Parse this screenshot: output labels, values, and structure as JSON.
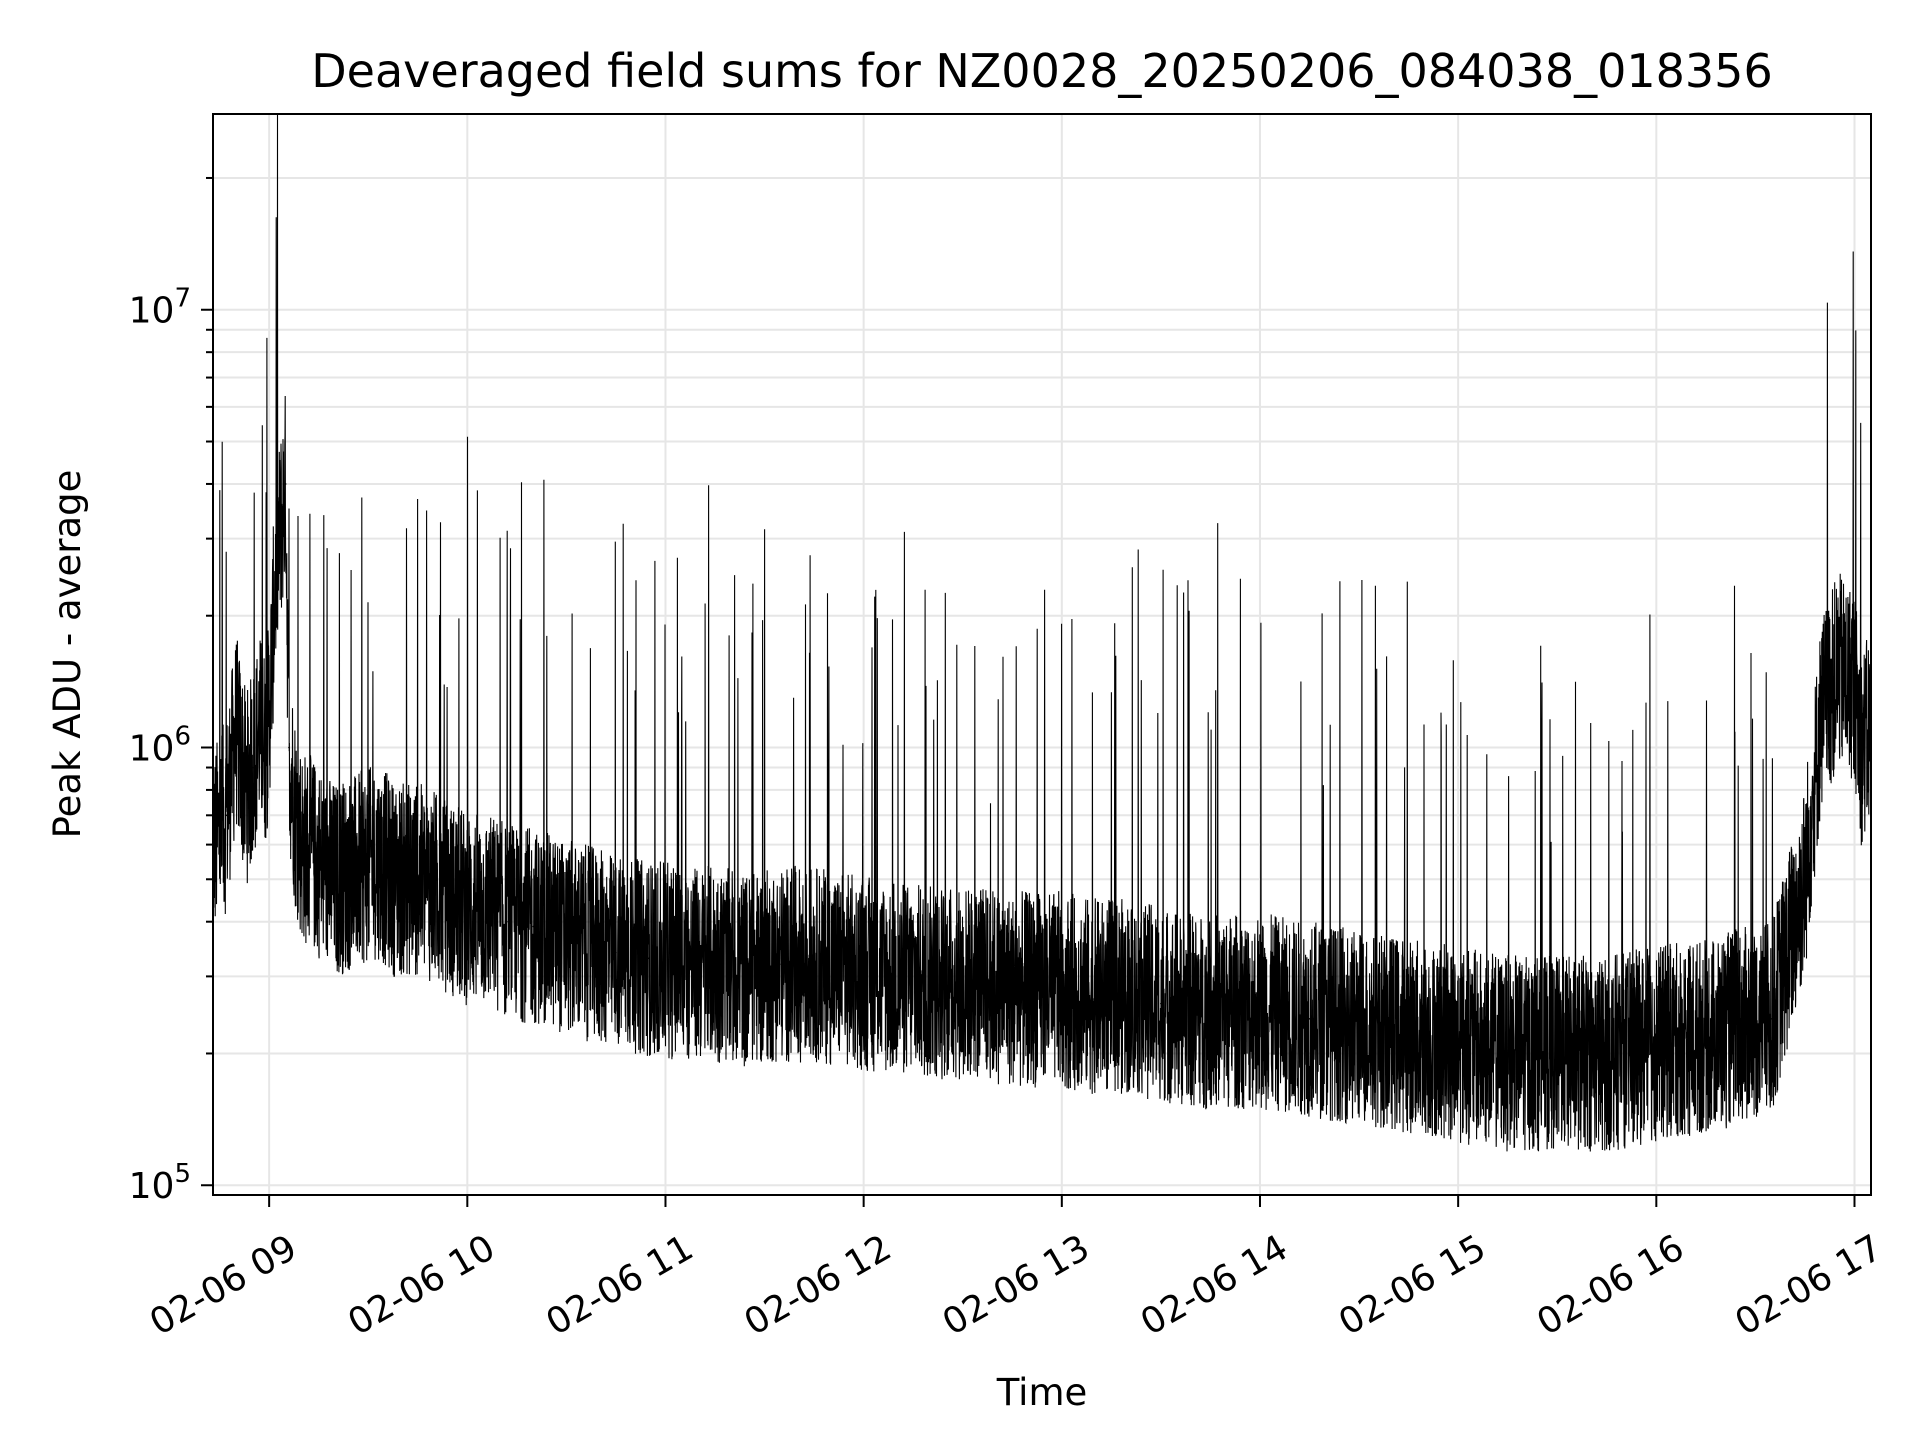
{
  "chart_data": {
    "type": "line",
    "title": "Deaveraged field sums for NZ0028_20250206_084038_018356",
    "xlabel": "Time",
    "ylabel": "Peak ADU - average",
    "yscale": "log",
    "ylim": [
      95000,
      28000000
    ],
    "xlim": [
      "2025-02-06 08:43",
      "2025-02-06 17:05"
    ],
    "grid": true,
    "line_color": "#000000",
    "x_ticks": [
      {
        "t": "2025-02-06 09:00",
        "label": "02-06 09"
      },
      {
        "t": "2025-02-06 10:00",
        "label": "02-06 10"
      },
      {
        "t": "2025-02-06 11:00",
        "label": "02-06 11"
      },
      {
        "t": "2025-02-06 12:00",
        "label": "02-06 12"
      },
      {
        "t": "2025-02-06 13:00",
        "label": "02-06 13"
      },
      {
        "t": "2025-02-06 14:00",
        "label": "02-06 14"
      },
      {
        "t": "2025-02-06 15:00",
        "label": "02-06 15"
      },
      {
        "t": "2025-02-06 16:00",
        "label": "02-06 16"
      },
      {
        "t": "2025-02-06 17:00",
        "label": "02-06 17"
      }
    ],
    "y_ticks": [
      {
        "value": 100000,
        "base": "10",
        "exp": "5"
      },
      {
        "value": 1000000,
        "base": "10",
        "exp": "6"
      },
      {
        "value": 10000000,
        "base": "10",
        "exp": "7"
      }
    ],
    "series": [
      {
        "x": [
          "2025-02-06 08:43",
          "2025-02-06 08:47",
          "2025-02-06 08:50",
          "2025-02-06 08:53",
          "2025-02-06 08:55",
          "2025-02-06 08:57",
          "2025-02-06 08:59",
          "2025-02-06 09:00",
          "2025-02-06 09:02",
          "2025-02-06 09:05",
          "2025-02-06 09:06",
          "2025-02-06 09:08",
          "2025-02-06 09:10",
          "2025-02-06 09:15",
          "2025-02-06 09:20",
          "2025-02-06 09:26",
          "2025-02-06 09:33",
          "2025-02-06 09:38",
          "2025-02-06 09:44",
          "2025-02-06 09:50",
          "2025-02-06 09:55",
          "2025-02-06 10:00",
          "2025-02-06 10:08",
          "2025-02-06 10:12",
          "2025-02-06 10:20",
          "2025-02-06 10:30",
          "2025-02-06 10:40",
          "2025-02-06 10:45",
          "2025-02-06 10:55",
          "2025-02-06 11:07",
          "2025-02-06 11:15",
          "2025-02-06 11:25",
          "2025-02-06 11:35",
          "2025-02-06 11:45",
          "2025-02-06 11:55",
          "2025-02-06 12:05",
          "2025-02-06 12:20",
          "2025-02-06 12:35",
          "2025-02-06 12:45",
          "2025-02-06 13:00",
          "2025-02-06 13:10",
          "2025-02-06 13:20",
          "2025-02-06 13:30",
          "2025-02-06 13:40",
          "2025-02-06 13:50",
          "2025-02-06 14:00",
          "2025-02-06 14:15",
          "2025-02-06 14:30",
          "2025-02-06 14:45",
          "2025-02-06 15:00",
          "2025-02-06 15:15",
          "2025-02-06 15:30",
          "2025-02-06 15:45",
          "2025-02-06 16:00",
          "2025-02-06 16:15",
          "2025-02-06 16:25",
          "2025-02-06 16:35",
          "2025-02-06 16:45",
          "2025-02-06 16:50",
          "2025-02-06 16:55",
          "2025-02-06 17:00",
          "2025-02-06 17:02",
          "2025-02-06 17:05"
        ],
        "values": [
          600000,
          700000,
          1100000,
          800000,
          900000,
          1100000,
          1000000,
          1200000,
          2500000,
          4000000,
          1000000,
          700000,
          600000,
          550000,
          500000,
          520000,
          550000,
          500000,
          500000,
          480000,
          450000,
          430000,
          420000,
          400000,
          390000,
          370000,
          350000,
          340000,
          330000,
          320000,
          320000,
          310000,
          320000,
          320000,
          310000,
          300000,
          290000,
          290000,
          280000,
          280000,
          270000,
          270000,
          260000,
          250000,
          250000,
          250000,
          240000,
          230000,
          220000,
          210000,
          200000,
          200000,
          200000,
          210000,
          220000,
          230000,
          240000,
          500000,
          1200000,
          1500000,
          1400000,
          1000000,
          1100000
        ]
      }
    ]
  }
}
